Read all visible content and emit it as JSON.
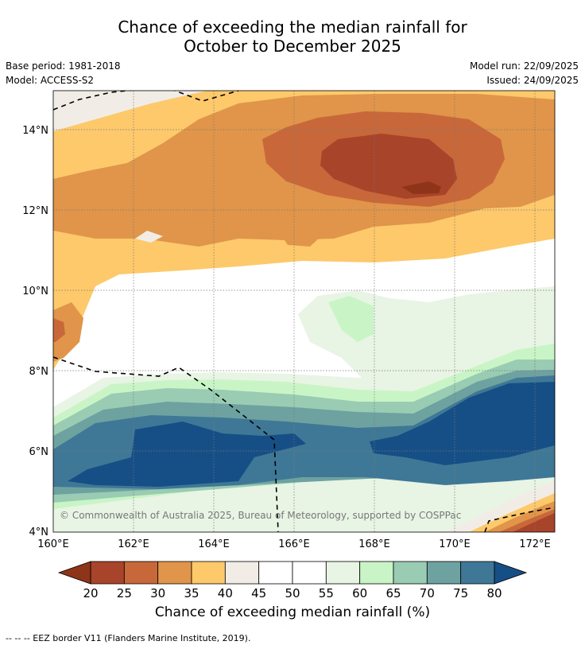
{
  "title": {
    "line1": "Chance of exceeding the median rainfall for",
    "line2": "October to December 2025"
  },
  "info": {
    "base_period": "Base period: 1981-2018",
    "model": "Model: ACCESS-S2",
    "model_run": "Model run: 22/09/2025",
    "issued": "Issued: 24/09/2025"
  },
  "map": {
    "lon_labels": [
      "160°E",
      "162°E",
      "164°E",
      "166°E",
      "168°E",
      "170°E",
      "172°E"
    ],
    "lat_labels": [
      "4°N",
      "6°N",
      "8°N",
      "10°N",
      "12°N",
      "14°N"
    ],
    "copyright": "© Commonwealth of Australia 2025, Bureau of Meteorology, supported by COSPPac"
  },
  "colorbar": {
    "ticks": [
      "20",
      "25",
      "30",
      "35",
      "40",
      "45",
      "50",
      "55",
      "60",
      "65",
      "70",
      "75",
      "80"
    ],
    "colors": [
      "#a8442a",
      "#c8683a",
      "#e0954a",
      "#fdc96b",
      "#f1ede6",
      "#ffffff",
      "#ffffff",
      "#e8f4e4",
      "#c9f5c6",
      "#99ccb3",
      "#6ea2a0",
      "#3f7896"
    ],
    "low_color": "#8e3419",
    "high_color": "#164f86",
    "label": "Chance of exceeding median rainfall (%)"
  },
  "footnote": "--  --  -- EEZ border V11 (Flanders Marine Institute, 2019)."
}
